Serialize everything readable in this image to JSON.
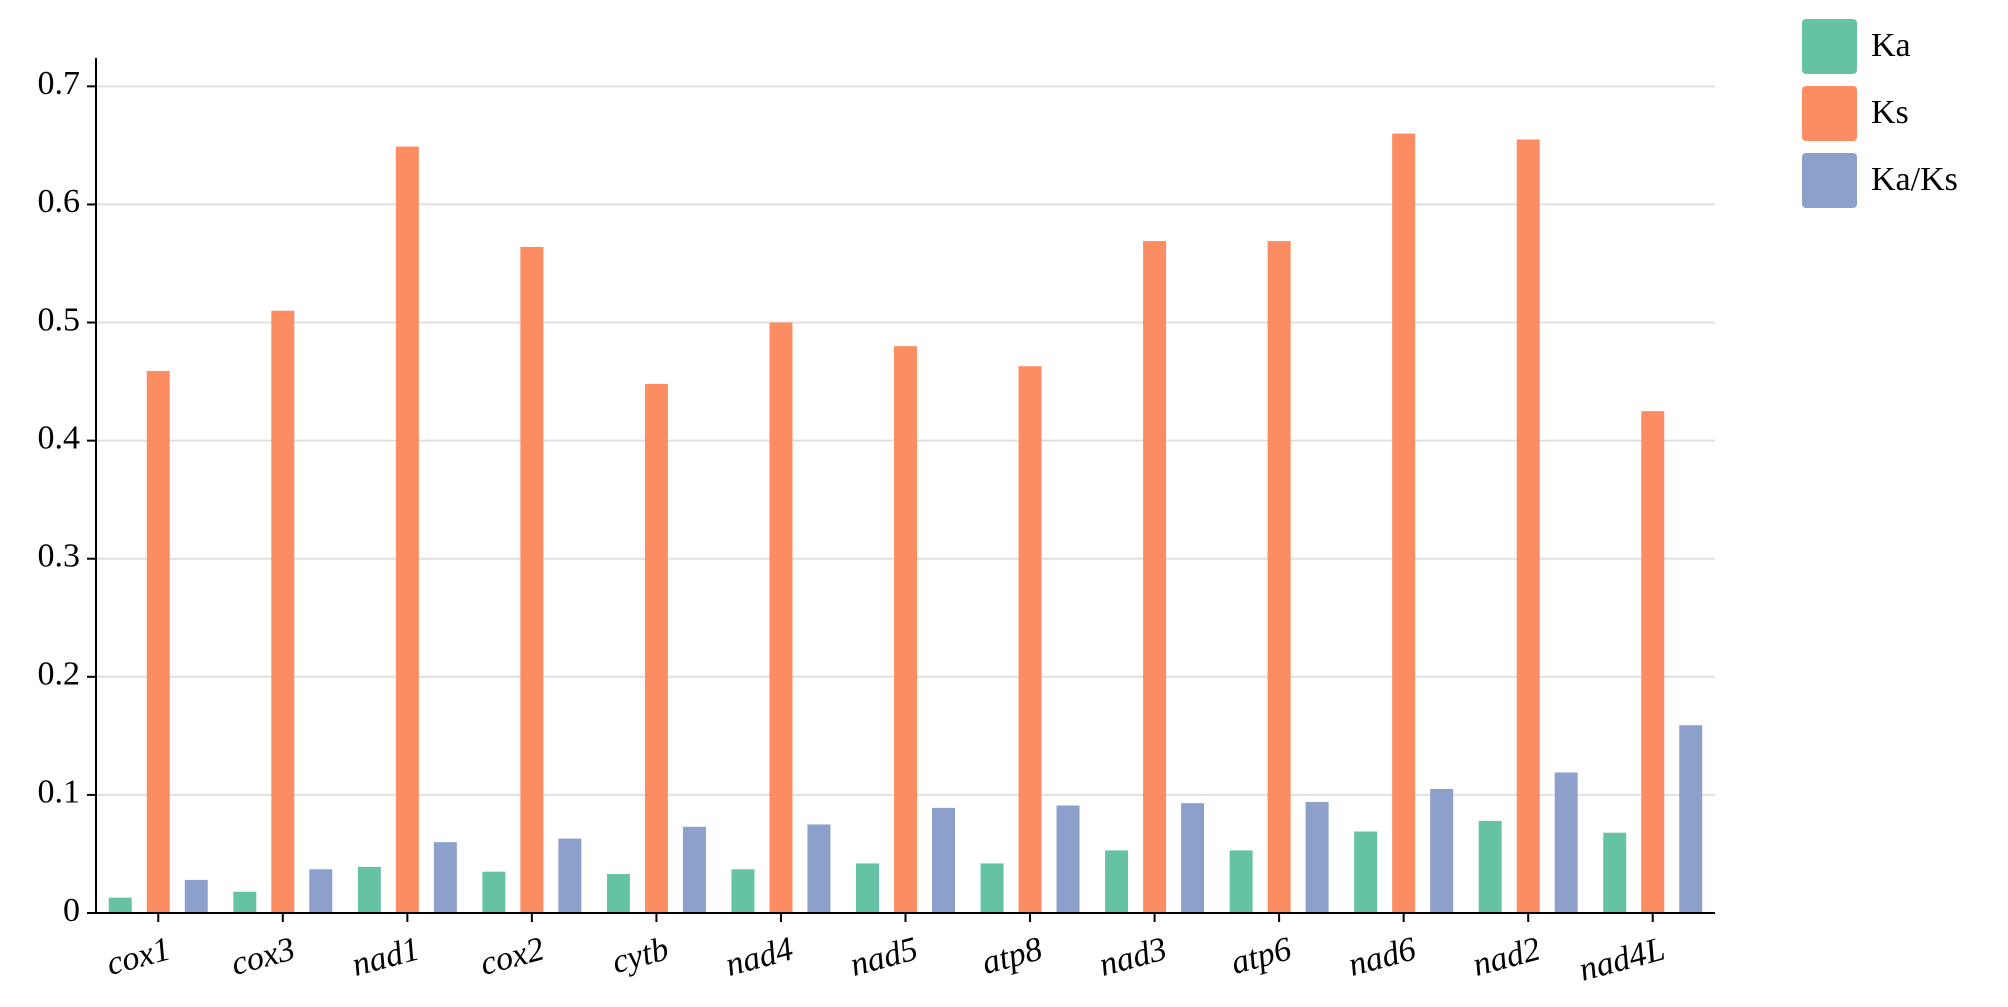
{
  "chart_data": {
    "type": "bar",
    "categories": [
      "cox1",
      "cox3",
      "nad1",
      "cox2",
      "cytb",
      "nad4",
      "nad5",
      "atp8",
      "nad3",
      "atp6",
      "nad6",
      "nad2",
      "nad4L"
    ],
    "series": [
      {
        "name": "Ka",
        "color": "#66c2a5",
        "values": [
          0.013,
          0.018,
          0.039,
          0.035,
          0.033,
          0.037,
          0.042,
          0.042,
          0.053,
          0.053,
          0.069,
          0.078,
          0.068
        ]
      },
      {
        "name": "Ks",
        "color": "#fc8d62",
        "values": [
          0.459,
          0.51,
          0.649,
          0.564,
          0.448,
          0.5,
          0.48,
          0.463,
          0.569,
          0.569,
          0.66,
          0.655,
          0.425
        ]
      },
      {
        "name": "Ka/Ks",
        "color": "#8da0cb",
        "values": [
          0.028,
          0.037,
          0.06,
          0.063,
          0.073,
          0.075,
          0.089,
          0.091,
          0.093,
          0.094,
          0.105,
          0.119,
          0.159
        ]
      }
    ],
    "ylim": [
      0,
      0.724
    ],
    "yticks": [
      0,
      0.1,
      0.2,
      0.3,
      0.4,
      0.5,
      0.6,
      0.7
    ],
    "grid": true,
    "legend": "upper right"
  }
}
